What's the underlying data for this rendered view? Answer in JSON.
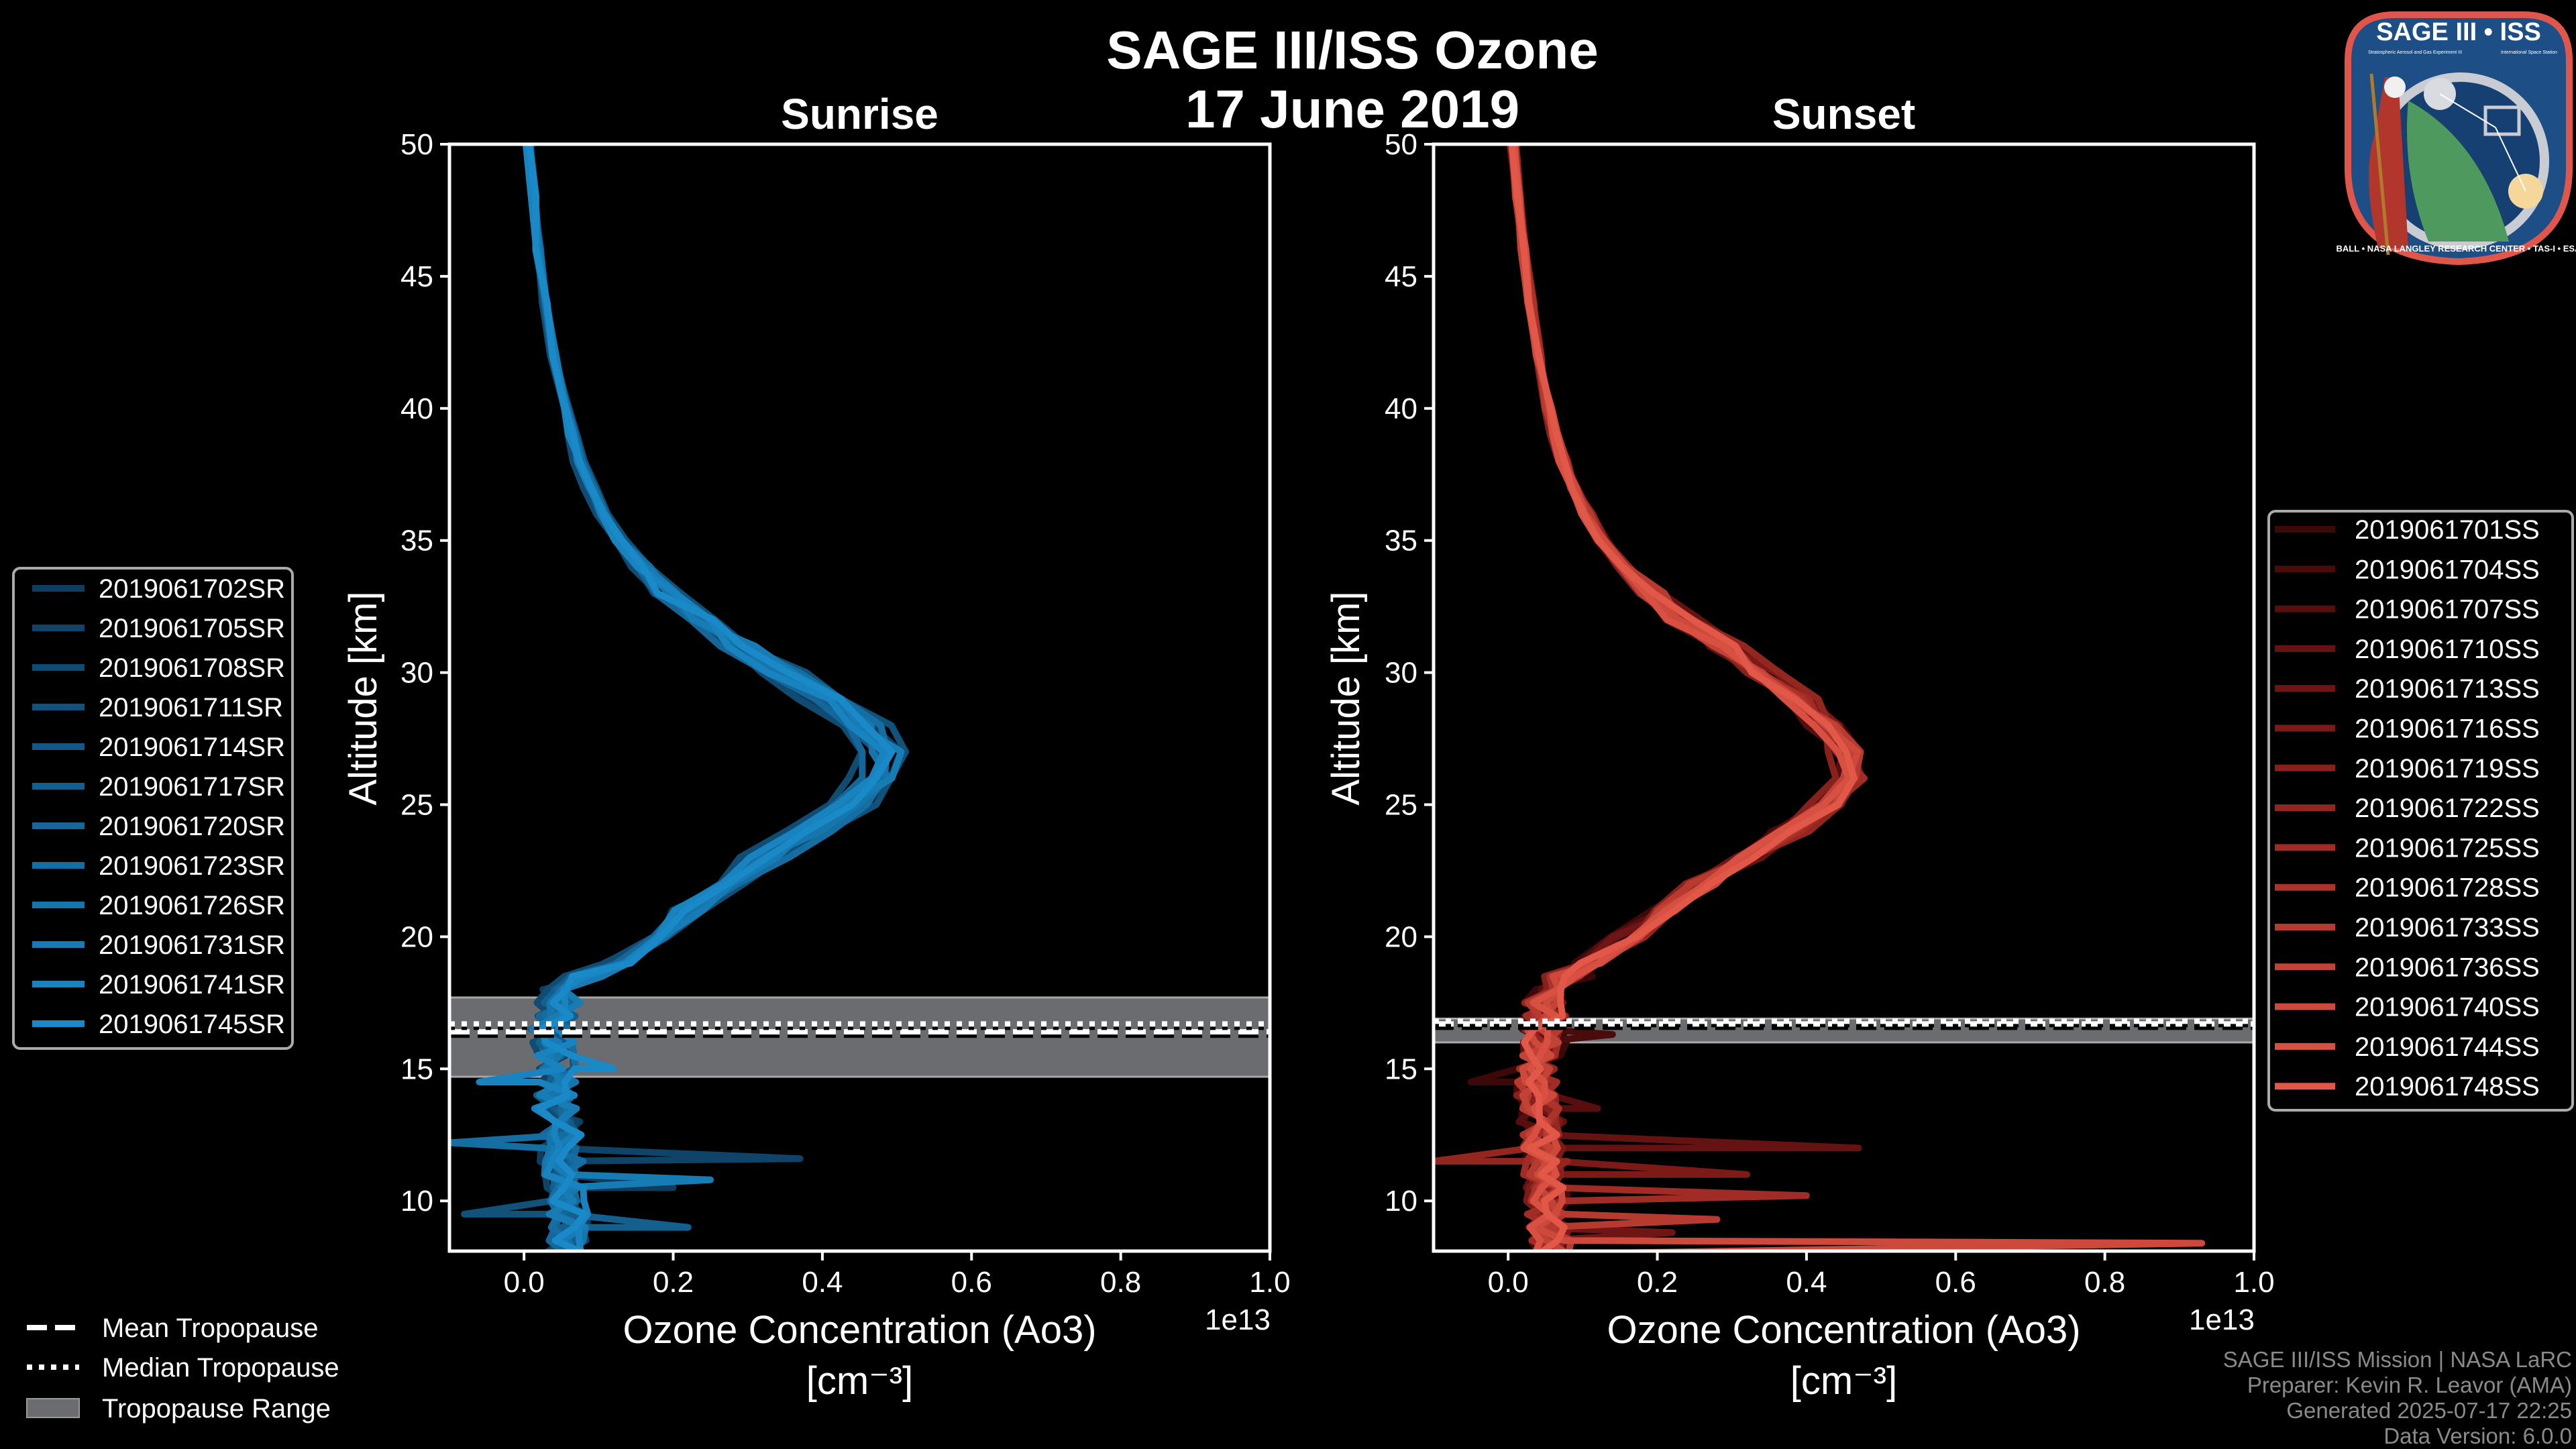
{
  "header": {
    "title_line1": "SAGE III/ISS Ozone",
    "title_line2": "17 June 2019"
  },
  "logo": {
    "title": "SAGE III • ISS",
    "subtitle_left": "Stratospheric Aerosol and Gas Experiment III",
    "subtitle_right": "International Space Station",
    "ring_text": "BALL • NASA LANGLEY RESEARCH CENTER • TAS-I • ESA"
  },
  "colors": {
    "background": "#000000",
    "tropopause_band": "#6b6c70",
    "axis": "#ffffff",
    "credit": "#8a8a8a"
  },
  "tropo_legend": {
    "mean": "Mean Tropopause",
    "median": "Median Tropopause",
    "range": "Tropopause Range"
  },
  "credits": [
    "SAGE III/ISS Mission | NASA LaRC",
    "Preparer: Kevin R. Leavor (AMA)",
    "Generated 2025-07-17 22:25",
    "Data Version: 6.0.0"
  ],
  "chart_data": [
    {
      "type": "line",
      "title": "Sunrise",
      "xlabel": "Ozone Concentration (Ao3)",
      "xlabel_units": "[cm⁻³]",
      "x_scale_label": "1e13",
      "ylabel": "Altitude [km]",
      "xlim": [
        -0.1,
        1.0
      ],
      "ylim": [
        8.1,
        50
      ],
      "xticks": [
        "0.0",
        "0.2",
        "0.4",
        "0.6",
        "0.8",
        "1.0"
      ],
      "yticks": [
        "10",
        "15",
        "20",
        "25",
        "30",
        "35",
        "40",
        "45",
        "50"
      ],
      "legend_position": "left-outside",
      "tropopause": {
        "mean": 16.4,
        "median": 16.7,
        "range": [
          14.7,
          17.7
        ]
      },
      "base_profile": {
        "altitude": [
          8,
          9,
          10,
          11,
          12,
          13,
          14,
          15,
          16,
          17,
          18,
          18.5,
          19,
          20,
          21,
          22,
          23,
          24,
          25,
          26,
          27,
          28,
          29,
          30,
          31,
          32,
          33,
          34,
          35,
          36,
          37,
          38,
          39,
          40,
          42,
          44,
          46,
          48,
          50
        ],
        "value": [
          0.06,
          0.06,
          0.055,
          0.05,
          0.05,
          0.045,
          0.045,
          0.04,
          0.04,
          0.045,
          0.06,
          0.09,
          0.13,
          0.17,
          0.22,
          0.27,
          0.33,
          0.39,
          0.44,
          0.48,
          0.485,
          0.46,
          0.41,
          0.35,
          0.29,
          0.24,
          0.195,
          0.16,
          0.13,
          0.11,
          0.09,
          0.075,
          0.065,
          0.055,
          0.04,
          0.03,
          0.02,
          0.012,
          0.005
        ]
      },
      "series": [
        {
          "name": "2019061702SR",
          "color": "#0e3d5f",
          "scale": 0.96,
          "noise": 0.035,
          "spikes": [
            [
              10.5,
              0.2
            ]
          ]
        },
        {
          "name": "2019061705SR",
          "color": "#0f4468",
          "scale": 1.02,
          "noise": 0.03,
          "spikes": [
            [
              11.6,
              0.37
            ]
          ]
        },
        {
          "name": "2019061708SR",
          "color": "#104b72",
          "scale": 0.92,
          "noise": 0.03,
          "spikes": []
        },
        {
          "name": "2019061711SR",
          "color": "#11527b",
          "scale": 1.05,
          "noise": 0.025,
          "spikes": [
            [
              9.5,
              -0.08
            ]
          ]
        },
        {
          "name": "2019061714SR",
          "color": "#125985",
          "scale": 0.98,
          "noise": 0.03,
          "spikes": []
        },
        {
          "name": "2019061717SR",
          "color": "#13608e",
          "scale": 1.0,
          "noise": 0.03,
          "spikes": [
            [
              9,
              0.22
            ]
          ]
        },
        {
          "name": "2019061720SR",
          "color": "#146798",
          "scale": 0.95,
          "noise": 0.025,
          "spikes": []
        },
        {
          "name": "2019061723SR",
          "color": "#156ea1",
          "scale": 1.03,
          "noise": 0.03,
          "spikes": [
            [
              12.2,
              -0.1
            ]
          ]
        },
        {
          "name": "2019061726SR",
          "color": "#1675ab",
          "scale": 0.99,
          "noise": 0.025,
          "spikes": []
        },
        {
          "name": "2019061731SR",
          "color": "#177cb4",
          "scale": 1.01,
          "noise": 0.03,
          "spikes": [
            [
              10.8,
              0.25
            ]
          ]
        },
        {
          "name": "2019061741SR",
          "color": "#1883be",
          "scale": 0.97,
          "noise": 0.03,
          "spikes": [
            [
              14.5,
              -0.06
            ]
          ]
        },
        {
          "name": "2019061745SR",
          "color": "#198ac7",
          "scale": 1.0,
          "noise": 0.03,
          "spikes": [
            [
              15,
              0.12
            ]
          ]
        }
      ]
    },
    {
      "type": "line",
      "title": "Sunset",
      "xlabel": "Ozone Concentration (Ao3)",
      "xlabel_units": "[cm⁻³]",
      "x_scale_label": "1e13",
      "ylabel": "Altitude [km]",
      "xlim": [
        -0.1,
        1.0
      ],
      "ylim": [
        8.1,
        50
      ],
      "xticks": [
        "0.0",
        "0.2",
        "0.4",
        "0.6",
        "0.8",
        "1.0"
      ],
      "yticks": [
        "10",
        "15",
        "20",
        "25",
        "30",
        "35",
        "40",
        "45",
        "50"
      ],
      "legend_position": "right-outside",
      "tropopause": {
        "mean": 16.7,
        "median": 16.8,
        "range": [
          16.0,
          16.9
        ]
      },
      "base_profile": {
        "altitude": [
          8,
          9,
          10,
          11,
          12,
          13,
          14,
          15,
          16,
          17,
          18,
          18.5,
          19,
          20,
          21,
          22,
          23,
          24,
          25,
          26,
          27,
          28,
          29,
          30,
          31,
          32,
          33,
          34,
          35,
          36,
          37,
          38,
          39,
          40,
          42,
          44,
          46,
          48,
          50
        ],
        "value": [
          0.06,
          0.055,
          0.05,
          0.05,
          0.045,
          0.045,
          0.04,
          0.04,
          0.045,
          0.05,
          0.06,
          0.08,
          0.11,
          0.16,
          0.21,
          0.26,
          0.32,
          0.38,
          0.43,
          0.46,
          0.455,
          0.43,
          0.39,
          0.34,
          0.29,
          0.235,
          0.19,
          0.155,
          0.125,
          0.105,
          0.088,
          0.074,
          0.063,
          0.054,
          0.04,
          0.03,
          0.02,
          0.012,
          0.006
        ]
      },
      "series": [
        {
          "name": "2019061701SS",
          "color": "#3d0808",
          "scale": 0.98,
          "noise": 0.035,
          "spikes": [
            [
              14.5,
              -0.05
            ]
          ]
        },
        {
          "name": "2019061704SS",
          "color": "#4a0b0b",
          "scale": 1.01,
          "noise": 0.03,
          "spikes": [
            [
              16.3,
              0.14
            ]
          ]
        },
        {
          "name": "2019061707SS",
          "color": "#570e0e",
          "scale": 0.97,
          "noise": 0.03,
          "spikes": [
            [
              13.5,
              0.12
            ]
          ]
        },
        {
          "name": "2019061710SS",
          "color": "#641212",
          "scale": 1.03,
          "noise": 0.03,
          "spikes": [
            [
              12,
              0.47
            ]
          ]
        },
        {
          "name": "2019061713SS",
          "color": "#701515",
          "scale": 0.99,
          "noise": 0.03,
          "spikes": [
            [
              8.8,
              0.22
            ]
          ]
        },
        {
          "name": "2019061716SS",
          "color": "#7c1a18",
          "scale": 1.02,
          "noise": 0.03,
          "spikes": [
            [
              11,
              0.32
            ]
          ]
        },
        {
          "name": "2019061719SS",
          "color": "#88201c",
          "scale": 0.96,
          "noise": 0.03,
          "spikes": []
        },
        {
          "name": "2019061722SS",
          "color": "#942620",
          "scale": 1.04,
          "noise": 0.03,
          "spikes": [
            [
              11.5,
              -0.1
            ]
          ]
        },
        {
          "name": "2019061725SS",
          "color": "#a02c25",
          "scale": 1.0,
          "noise": 0.03,
          "spikes": [
            [
              10.2,
              0.4
            ]
          ]
        },
        {
          "name": "2019061728SS",
          "color": "#ab332a",
          "scale": 0.98,
          "noise": 0.025,
          "spikes": []
        },
        {
          "name": "2019061733SS",
          "color": "#b63a30",
          "scale": 1.01,
          "noise": 0.03,
          "spikes": [
            [
              9.3,
              0.28
            ]
          ]
        },
        {
          "name": "2019061736SS",
          "color": "#c14236",
          "scale": 0.99,
          "noise": 0.025,
          "spikes": []
        },
        {
          "name": "2019061740SS",
          "color": "#cc493c",
          "scale": 1.02,
          "noise": 0.025,
          "spikes": [
            [
              8.4,
              0.93
            ]
          ]
        },
        {
          "name": "2019061744SS",
          "color": "#d75042",
          "scale": 0.97,
          "noise": 0.025,
          "spikes": []
        },
        {
          "name": "2019061748SS",
          "color": "#e25848",
          "scale": 1.0,
          "noise": 0.025,
          "spikes": []
        }
      ]
    }
  ]
}
